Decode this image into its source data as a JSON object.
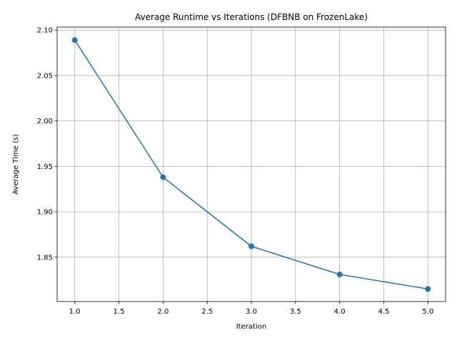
{
  "chart_data": {
    "type": "line",
    "title": "Average Runtime vs Iterations (DFBNB on FrozenLake)",
    "xlabel": "Iteration",
    "ylabel": "Average Time (s)",
    "xlim": [
      0.8,
      5.2
    ],
    "ylim": [
      1.8012,
      2.1033
    ],
    "xticks": [
      1.0,
      1.5,
      2.0,
      2.5,
      3.0,
      3.5,
      4.0,
      4.5,
      5.0
    ],
    "xtick_labels": [
      "1.0",
      "1.5",
      "2.0",
      "2.5",
      "3.0",
      "3.5",
      "4.0",
      "4.5",
      "5.0"
    ],
    "yticks": [
      1.85,
      1.9,
      1.95,
      2.0,
      2.05,
      2.1
    ],
    "ytick_labels": [
      "1.85",
      "1.90",
      "1.95",
      "2.00",
      "2.05",
      "2.10"
    ],
    "grid": true,
    "marker": "circle",
    "color": "#1f77b4",
    "series": [
      {
        "x": [
          1,
          2,
          3,
          4,
          5
        ],
        "values": [
          2.089,
          1.938,
          1.862,
          1.831,
          1.815
        ]
      }
    ]
  }
}
